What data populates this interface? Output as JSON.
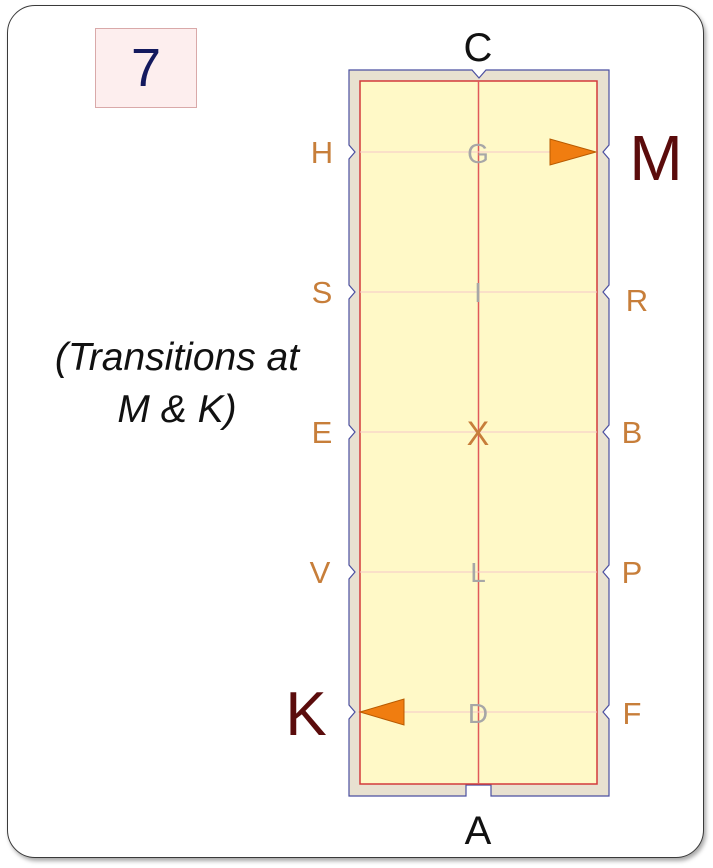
{
  "pattern_number": "7",
  "note_lines": [
    "(Transitions at",
    "M & K)"
  ],
  "ends": {
    "top": "C",
    "bottom": "A"
  },
  "side_letters": {
    "left": [
      "H",
      "S",
      "E",
      "V",
      "K"
    ],
    "right": [
      "M",
      "R",
      "B",
      "P",
      "F"
    ],
    "centre": [
      "G",
      "I",
      "X",
      "L",
      "D"
    ]
  },
  "colors": {
    "arena_fill": "#fff9c7",
    "arena_surround": "#e8e1d0",
    "track_line": "#e05a5a",
    "side_letter": "#c77e3a",
    "centre_letter": "#a7a7a7",
    "highlight_letter": "#5b0c0c",
    "marker": "#f07d10"
  },
  "icons": [
    "triangle-right-icon",
    "triangle-left-icon"
  ]
}
